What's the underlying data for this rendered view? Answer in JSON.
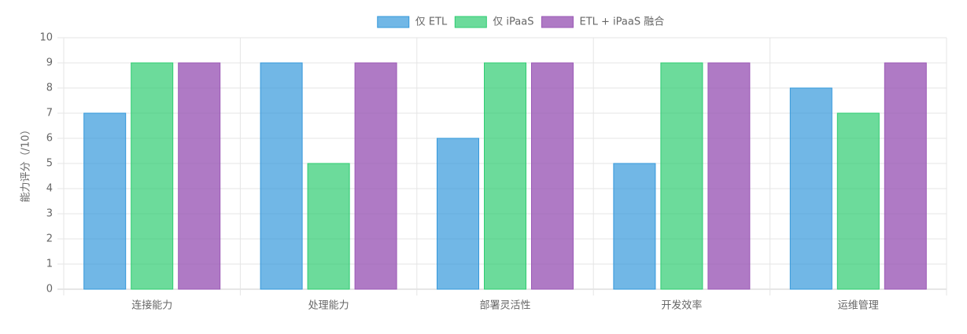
{
  "chart_data": {
    "type": "bar",
    "y_label": "能力评分（/10）",
    "categories": [
      "连接能力",
      "处理能力",
      "部署灵活性",
      "开发效率",
      "运维管理"
    ],
    "series": [
      {
        "name": "仅 ETL",
        "color": "#3498db",
        "values": [
          7,
          9,
          6,
          5,
          8
        ]
      },
      {
        "name": "仅 iPaaS",
        "color": "#2ecc71",
        "values": [
          9,
          5,
          9,
          9,
          7
        ]
      },
      {
        "name": "ETL + iPaaS 融合",
        "color": "#9b59b6",
        "values": [
          9,
          9,
          9,
          9,
          9
        ]
      }
    ],
    "ylim": [
      0,
      10
    ],
    "yticks": [
      0,
      1,
      2,
      3,
      4,
      5,
      6,
      7,
      8,
      9,
      10
    ],
    "grid": true,
    "legend": "top"
  }
}
